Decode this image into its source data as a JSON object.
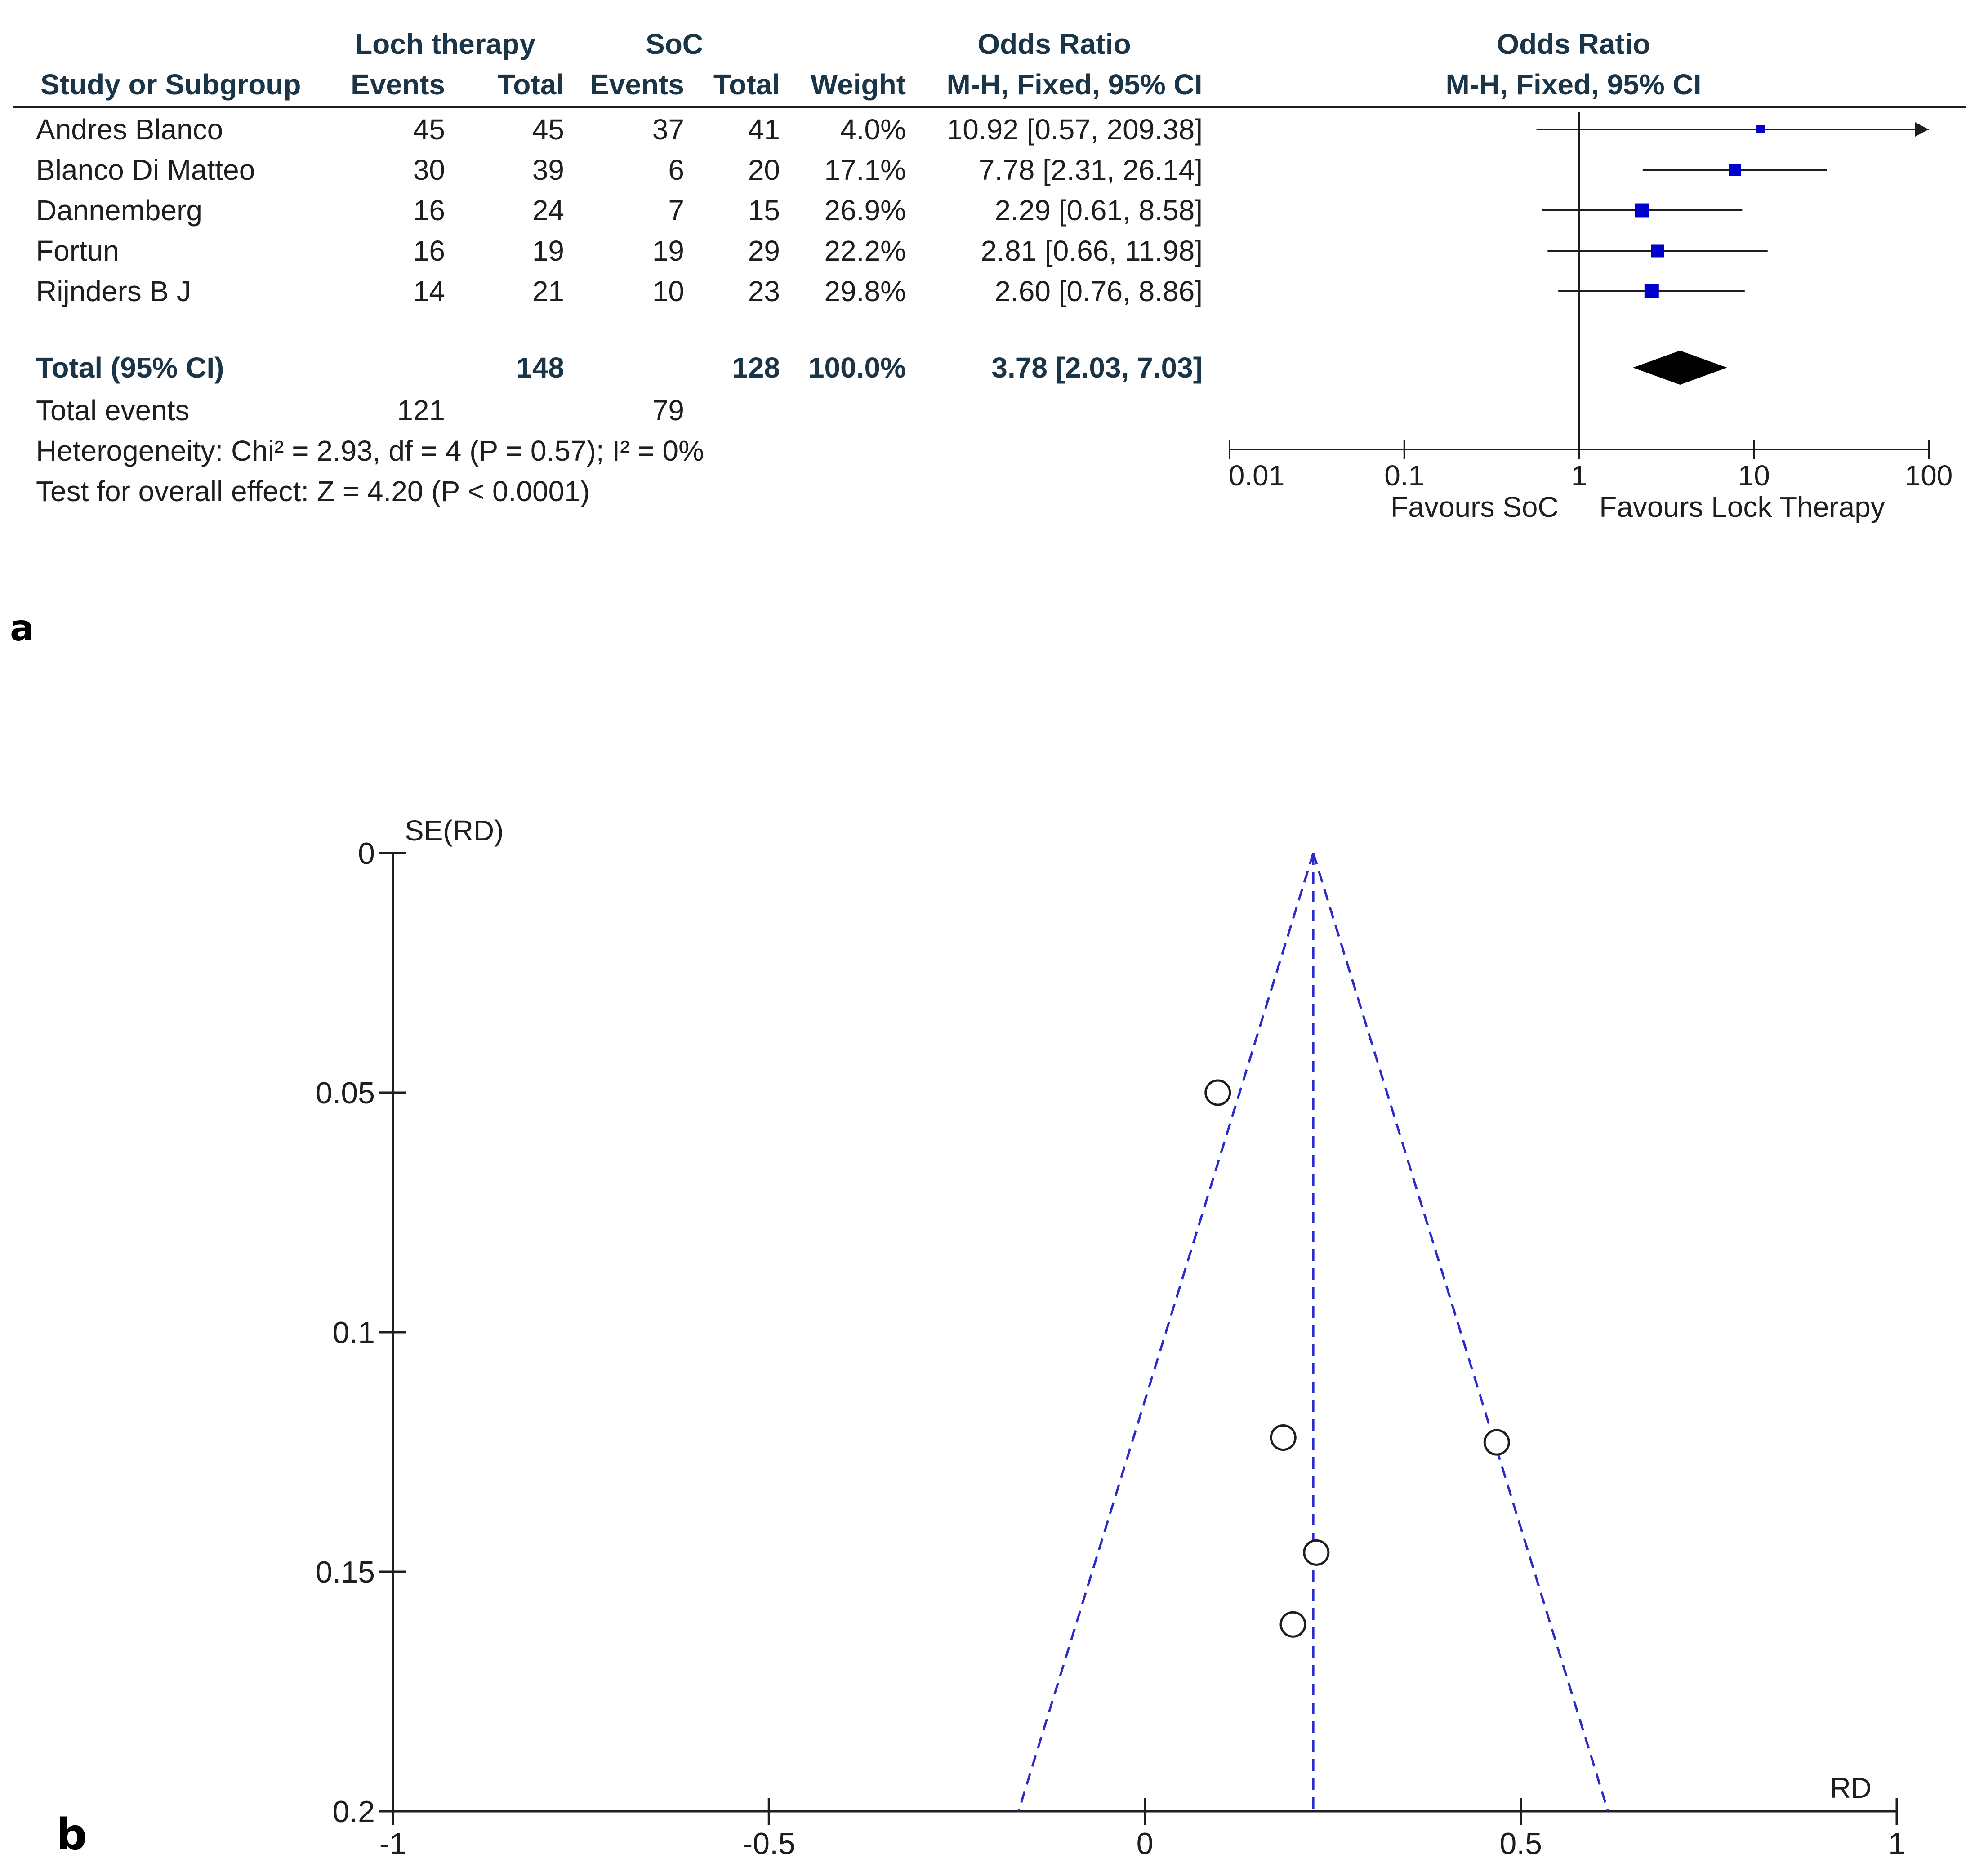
{
  "chart_data": [
    {
      "type": "forest",
      "panel_label": "a",
      "headers": {
        "group1": "Loch therapy",
        "group2": "SoC",
        "or_group": "Odds Ratio",
        "or_plot": "Odds Ratio",
        "study": "Study or Subgroup",
        "events": "Events",
        "total": "Total",
        "weight": "Weight",
        "method": "M-H, Fixed, 95% CI",
        "plot_method": "M-H, Fixed, 95% CI"
      },
      "studies": [
        {
          "name": "Andres Blanco",
          "e1": "45",
          "n1": "45",
          "e2": "37",
          "n2": "41",
          "weight": "4.0%",
          "ci_text": "10.92 [0.57, 209.38]",
          "or": 10.92,
          "lo": 0.57,
          "hi": 209.38
        },
        {
          "name": "Blanco Di Matteo",
          "e1": "30",
          "n1": "39",
          "e2": "6",
          "n2": "20",
          "weight": "17.1%",
          "ci_text": "7.78 [2.31, 26.14]",
          "or": 7.78,
          "lo": 2.31,
          "hi": 26.14
        },
        {
          "name": "Dannemberg",
          "e1": "16",
          "n1": "24",
          "e2": "7",
          "n2": "15",
          "weight": "26.9%",
          "ci_text": "2.29 [0.61, 8.58]",
          "or": 2.29,
          "lo": 0.61,
          "hi": 8.58
        },
        {
          "name": "Fortun",
          "e1": "16",
          "n1": "19",
          "e2": "19",
          "n2": "29",
          "weight": "22.2%",
          "ci_text": "2.81 [0.66, 11.98]",
          "or": 2.81,
          "lo": 0.66,
          "hi": 11.98
        },
        {
          "name": "Rijnders B J",
          "e1": "14",
          "n1": "21",
          "e2": "10",
          "n2": "23",
          "weight": "29.8%",
          "ci_text": "2.60 [0.76, 8.86]",
          "or": 2.6,
          "lo": 0.76,
          "hi": 8.86
        }
      ],
      "total": {
        "label": "Total (95% CI)",
        "n1": "148",
        "n2": "128",
        "weight": "100.0%",
        "ci_text": "3.78 [2.03, 7.03]",
        "or": 3.78,
        "lo": 2.03,
        "hi": 7.03
      },
      "total_events": {
        "label": "Total events",
        "e1": "121",
        "e2": "79"
      },
      "heterogeneity": "Heterogeneity: Chi² = 2.93, df = 4 (P = 0.57); I² = 0%",
      "overall_effect": "Test for overall effect: Z = 4.20 (P < 0.0001)",
      "axis": {
        "scale": "log",
        "min": 0.01,
        "max": 100,
        "ticks": [
          0.01,
          0.1,
          1,
          10,
          100
        ],
        "tick_labels": [
          "0.01",
          "0.1",
          "1",
          "10",
          "100"
        ]
      },
      "favours_left": "Favours SoC",
      "favours_right": "Favours Lock Therapy",
      "marker_color": "#0000cc"
    },
    {
      "type": "scatter",
      "subtype": "funnel",
      "panel_label": "b",
      "xlabel": "RD",
      "ylabel": "SE(RD)",
      "xlim": [
        -1,
        1
      ],
      "ylim": [
        0,
        0.2
      ],
      "y_inverted": true,
      "x_ticks": [
        -1,
        -0.5,
        0,
        0.5,
        1
      ],
      "x_tick_labels": [
        "-1",
        "-0.5",
        "0",
        "0.5",
        "1"
      ],
      "y_ticks": [
        0,
        0.05,
        0.1,
        0.15,
        0.2
      ],
      "y_tick_labels": [
        "0",
        "0.05",
        "0.1",
        "0.15",
        "0.2"
      ],
      "points": [
        {
          "x": 0.097,
          "y": 0.05
        },
        {
          "x": 0.184,
          "y": 0.122
        },
        {
          "x": 0.468,
          "y": 0.123
        },
        {
          "x": 0.228,
          "y": 0.146
        },
        {
          "x": 0.197,
          "y": 0.161
        }
      ],
      "pooled_rd": 0.224,
      "funnel_color": "#2b2bcc"
    }
  ]
}
